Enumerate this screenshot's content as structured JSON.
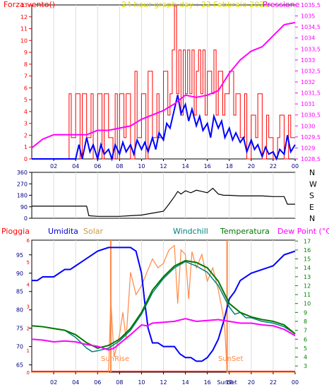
{
  "colors": {
    "wind": "#ff0000",
    "gust": "#ff0000",
    "pressure": "#ff00ff",
    "title": "#e0e000",
    "humidity": "#0000ff",
    "temperature": "#007700",
    "windchill": "#008080",
    "dewpoint": "#ff00ff",
    "solar": "#ff8844",
    "rain": "#ff0000",
    "sun_marker": "#ff8844",
    "left_axis_main": "#ff0000",
    "right_axis_main": "#ff00ff",
    "right_axis_bottom": "#008000"
  },
  "hour_ticks": [
    "02",
    "04",
    "06",
    "08",
    "10",
    "12",
    "14",
    "16",
    "18",
    "20",
    "22",
    "00"
  ],
  "chart_data": [
    {
      "type": "line",
      "title": "24 hour graph day : 22 Febbraio 2021",
      "left_label": "Forza vento()",
      "right_label": "Pressione",
      "left_ticks": [
        "0",
        "1",
        "2",
        "3",
        "4",
        "5",
        "6",
        "7",
        "8",
        "9",
        "10",
        "11",
        "12",
        "13"
      ],
      "right_ticks": [
        "1028,5",
        "1029",
        "1029,5",
        "1030",
        "1030,5",
        "1031",
        "1031,5",
        "1032",
        "1032,5",
        "1033",
        "1033,5",
        "1034",
        "1034,5",
        "1035",
        "1035,5"
      ],
      "ylim_left": [
        0,
        13
      ],
      "ylim_right": [
        1028.5,
        1035.5
      ],
      "x_hours": [
        0,
        24
      ],
      "series": [
        {
          "key": "gust",
          "x": [
            0.0,
            1.0,
            2.0,
            3.0,
            3.4,
            3.6,
            4.0,
            4.4,
            4.6,
            5.0,
            5.4,
            5.6,
            6.0,
            6.4,
            6.6,
            7.0,
            7.4,
            7.6,
            7.8,
            8.0,
            8.4,
            8.6,
            9.0,
            9.4,
            9.6,
            10.0,
            10.4,
            10.6,
            11.0,
            11.4,
            11.6,
            12.0,
            12.4,
            12.6,
            12.8,
            13.0,
            13.2,
            13.4,
            13.6,
            13.8,
            14.0,
            14.2,
            14.4,
            14.6,
            14.8,
            15.0,
            15.2,
            15.4,
            15.6,
            15.8,
            16.0,
            16.4,
            16.6,
            16.8,
            17.0,
            17.4,
            17.6,
            18.0,
            18.4,
            18.6,
            19.0,
            19.4,
            19.6,
            20.0,
            20.4,
            20.6,
            21.0,
            21.4,
            21.6,
            22.0,
            22.4,
            22.6,
            23.0,
            23.4,
            23.6,
            24.0
          ],
          "values": [
            0,
            0,
            0,
            0,
            5.5,
            1.8,
            5.5,
            0,
            5.5,
            1.8,
            5.5,
            0,
            5.5,
            0,
            5.5,
            1.8,
            0,
            5.5,
            0,
            5.5,
            1.8,
            5.5,
            0,
            7.4,
            1.8,
            5.5,
            0,
            7.4,
            1.8,
            5.5,
            1.8,
            7.4,
            3.7,
            5.5,
            9.2,
            12.9,
            5.5,
            9.2,
            3.7,
            9.2,
            5.5,
            9.2,
            5.5,
            9.2,
            3.7,
            7.4,
            9.2,
            5.5,
            9.2,
            3.7,
            7.4,
            5.5,
            9.2,
            3.7,
            7.4,
            3.7,
            5.5,
            7.4,
            3.7,
            5.5,
            1.8,
            5.5,
            0,
            3.7,
            1.8,
            5.5,
            0,
            3.7,
            1.8,
            0,
            1.8,
            3.7,
            0,
            3.7,
            1.8,
            1.8
          ]
        },
        {
          "key": "wind",
          "x": [
            0.0,
            4.0,
            4.3,
            4.6,
            5.0,
            5.3,
            5.6,
            6.0,
            6.3,
            6.6,
            7.0,
            7.3,
            7.6,
            8.0,
            8.3,
            8.6,
            9.0,
            9.3,
            9.6,
            10.0,
            10.3,
            10.6,
            11.0,
            11.3,
            11.6,
            12.0,
            12.3,
            12.6,
            13.0,
            13.3,
            13.6,
            14.0,
            14.3,
            14.6,
            15.0,
            15.3,
            15.6,
            16.0,
            16.3,
            16.6,
            17.0,
            17.3,
            17.6,
            18.0,
            18.3,
            18.6,
            19.0,
            19.3,
            19.6,
            20.0,
            20.3,
            20.6,
            21.0,
            21.3,
            21.6,
            22.0,
            22.3,
            22.6,
            23.0,
            23.3,
            23.6,
            24.0
          ],
          "values": [
            0,
            0,
            1.2,
            0,
            1.8,
            0.6,
            1.2,
            0,
            1.2,
            0.4,
            0.8,
            0,
            1.2,
            0.4,
            1.4,
            0.6,
            1.2,
            0.4,
            1.6,
            0.8,
            1.4,
            0.6,
            1.8,
            0.8,
            2.2,
            1.6,
            3.0,
            2.6,
            4.2,
            5.4,
            3.8,
            4.6,
            3.2,
            4.2,
            2.8,
            3.6,
            2.4,
            3.0,
            1.8,
            3.6,
            2.6,
            3.2,
            1.8,
            2.6,
            1.6,
            2.2,
            1.4,
            1.8,
            0.6,
            1.6,
            0.8,
            1.2,
            0.2,
            1.0,
            0.4,
            0.6,
            0,
            0.8,
            0.4,
            2.0,
            0.6,
            1.2
          ]
        },
        {
          "key": "pressure",
          "axis": "right",
          "x": [
            0,
            1,
            2,
            3,
            4,
            5,
            6,
            7,
            8,
            9,
            10,
            11,
            12,
            13,
            14,
            15,
            16,
            17,
            18,
            19,
            20,
            21,
            22,
            23,
            24
          ],
          "values": [
            1029.0,
            1029.4,
            1029.6,
            1029.6,
            1029.6,
            1029.6,
            1029.8,
            1029.8,
            1029.9,
            1030.0,
            1030.3,
            1030.5,
            1030.7,
            1031.0,
            1031.4,
            1031.3,
            1031.4,
            1031.6,
            1032.4,
            1033.0,
            1033.4,
            1033.6,
            1034.1,
            1034.6,
            1034.7
          ]
        }
      ]
    },
    {
      "type": "line",
      "left_ticks": [
        "360",
        "270",
        "180",
        "90",
        "0"
      ],
      "right_ticks": [
        "N",
        "W",
        "S",
        "E",
        "N"
      ],
      "ylim": [
        0,
        360
      ],
      "x_hours": [
        0,
        24
      ],
      "series": [
        {
          "key": "wind_direction",
          "x": [
            0,
            1,
            2,
            3,
            4,
            5,
            5.2,
            6,
            7,
            8,
            9,
            10,
            11,
            12,
            12.5,
            13,
            13.3,
            13.6,
            14,
            14.5,
            15,
            15.5,
            16,
            16.5,
            17,
            17.5,
            18,
            19,
            20,
            21,
            22,
            23,
            23.3,
            24
          ],
          "values": [
            95,
            95,
            95,
            95,
            95,
            95,
            20,
            15,
            15,
            15,
            20,
            25,
            40,
            55,
            110,
            170,
            210,
            190,
            215,
            200,
            220,
            210,
            200,
            235,
            190,
            180,
            180,
            175,
            175,
            175,
            170,
            170,
            110,
            110
          ]
        }
      ]
    },
    {
      "type": "line",
      "labels": {
        "rain": "Pioggia",
        "humidity": "Umidita",
        "solar": "Solar",
        "windchill": "Windchill",
        "temperature": "Temperatura",
        "dewpoint": "Dew Point (°C)",
        "sunrise": "SunRise",
        "sunset": "SunSet",
        "sunset_tick": "SunSet"
      },
      "left_ticks": [
        "65",
        "70",
        "75",
        "80",
        "85",
        "90",
        "95"
      ],
      "rain_ticks": [
        "0",
        "1",
        "2",
        "3",
        "4",
        "5",
        "6"
      ],
      "right_ticks": [
        "3",
        "4",
        "5",
        "6",
        "7",
        "8",
        "9",
        "10",
        "11",
        "12",
        "13",
        "14",
        "15",
        "16",
        "17"
      ],
      "ylim_humidity": [
        63,
        99
      ],
      "ylim_temperature": [
        2.3,
        17.1
      ],
      "x_hours": [
        0,
        24
      ],
      "sunrise_hour": 7.2,
      "sunset_hour": 17.8,
      "series": [
        {
          "key": "solar",
          "x": [
            0,
            7.0,
            7.2,
            7.5,
            8.0,
            8.3,
            8.6,
            9.0,
            9.5,
            10.0,
            10.5,
            11.0,
            11.5,
            12.0,
            12.5,
            13.0,
            13.3,
            13.6,
            14.0,
            14.3,
            14.6,
            15.0,
            15.5,
            16.0,
            16.5,
            17.0,
            17.4,
            17.6,
            17.8,
            24
          ],
          "values": [
            2.3,
            2.3,
            10.5,
            4.0,
            6.5,
            9.0,
            6.0,
            13.5,
            11.0,
            12.0,
            13.5,
            15.0,
            14.0,
            14.5,
            16.0,
            16.5,
            10.0,
            16.0,
            15.5,
            10.5,
            15.8,
            14.0,
            15.5,
            12.5,
            14.0,
            11.5,
            9.0,
            7.0,
            2.3,
            2.3
          ]
        },
        {
          "key": "humidity",
          "axis": "humidity",
          "x": [
            0,
            0.5,
            1,
            2,
            2.5,
            3,
            3.5,
            4,
            4.5,
            5,
            5.5,
            6,
            7,
            8,
            9,
            9.5,
            10,
            10.3,
            10.6,
            11,
            11.5,
            12,
            13,
            13.5,
            14,
            14.5,
            15,
            15.5,
            16,
            16.5,
            17,
            17.5,
            18,
            18.5,
            19,
            19.5,
            20,
            21,
            22,
            23,
            24
          ],
          "values": [
            88,
            88,
            89,
            89,
            90,
            91,
            91,
            92,
            93,
            94,
            95,
            96,
            97,
            97,
            97,
            96,
            90,
            82,
            75,
            71,
            71,
            70,
            70,
            68,
            67,
            67,
            66,
            66,
            67,
            69,
            72,
            77,
            83,
            85,
            88,
            89,
            90,
            91,
            92,
            95,
            96
          ]
        },
        {
          "key": "temperature",
          "axis": "temperature",
          "x": [
            0,
            1,
            2,
            3,
            4,
            5,
            6,
            7,
            8,
            9,
            10,
            11,
            12,
            13,
            14,
            15,
            16,
            17,
            18,
            19,
            20,
            21,
            22,
            23,
            24
          ],
          "values": [
            7.5,
            7.4,
            7.2,
            7.0,
            6.5,
            5.6,
            5.0,
            5.3,
            6.0,
            7.2,
            9.0,
            11.5,
            13.0,
            14.2,
            14.8,
            14.6,
            14.0,
            12.5,
            10.0,
            9.0,
            8.5,
            8.2,
            8.0,
            7.6,
            6.6
          ]
        },
        {
          "key": "windchill",
          "axis": "temperature",
          "x": [
            0,
            1,
            2,
            3,
            4,
            4.5,
            5,
            5.5,
            6,
            7,
            8,
            9,
            10,
            11,
            12,
            13,
            14,
            15,
            16,
            17,
            18,
            18.5,
            19,
            19.5,
            20,
            21,
            22,
            23,
            24
          ],
          "values": [
            7.5,
            7.4,
            7.2,
            7.0,
            6.2,
            5.6,
            5.0,
            4.6,
            4.7,
            5.0,
            5.8,
            7.0,
            8.8,
            11.2,
            12.8,
            14.0,
            14.7,
            14.2,
            13.5,
            12.0,
            9.6,
            8.8,
            9.0,
            8.4,
            8.4,
            8.0,
            7.8,
            7.4,
            6.6
          ]
        },
        {
          "key": "dewpoint",
          "axis": "temperature",
          "x": [
            0,
            1,
            2,
            3,
            4,
            5,
            6,
            7,
            7.5,
            8,
            9,
            10,
            10.5,
            11,
            12,
            13,
            14,
            15,
            16,
            17,
            18,
            19,
            20,
            21,
            22,
            23,
            24
          ],
          "values": [
            6.0,
            5.9,
            5.7,
            5.8,
            5.7,
            5.4,
            5.2,
            4.8,
            5.0,
            5.5,
            6.5,
            7.6,
            7.5,
            7.8,
            7.9,
            8.0,
            8.3,
            8.0,
            8.1,
            8.2,
            8.0,
            7.8,
            7.8,
            7.6,
            7.5,
            7.1,
            6.4
          ]
        }
      ]
    }
  ]
}
